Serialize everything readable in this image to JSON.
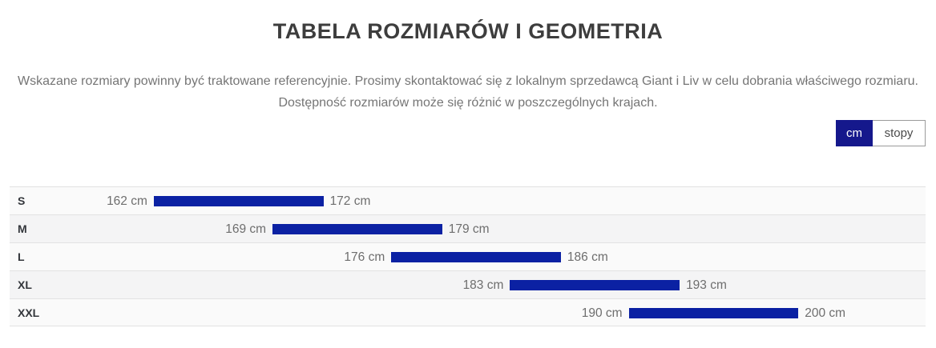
{
  "page": {
    "title": "TABELA ROZMIARÓW I GEOMETRIA",
    "description_line1": "Wskazane rozmiary powinny być traktowane referencyjnie. Prosimy skontaktować się z lokalnym sprzedawcą Giant i Liv w celu dobrania właściwego rozmiaru.",
    "description_line2": "Dostępność rozmiarów może się różnić w poszczególnych krajach."
  },
  "unit_toggle": {
    "active_option": "cm",
    "active_bg": "#15188c",
    "options": [
      {
        "label": "cm",
        "active": true
      },
      {
        "label": "stopy",
        "active": false
      }
    ]
  },
  "chart_data": {
    "type": "bar",
    "subtype": "horizontal-range-bars",
    "unit": "cm",
    "title": "",
    "xlabel": "",
    "ylabel": "",
    "grid": false,
    "legend": false,
    "axis_min": 153.5,
    "axis_max": 207.5,
    "bar_color": "#0b21a3",
    "categories": [
      "S",
      "M",
      "L",
      "XL",
      "XXL"
    ],
    "rows": [
      {
        "category": "S",
        "start": 162,
        "end": 172,
        "start_label": "162 cm",
        "end_label": "172 cm"
      },
      {
        "category": "M",
        "start": 169,
        "end": 179,
        "start_label": "169 cm",
        "end_label": "179 cm"
      },
      {
        "category": "L",
        "start": 176,
        "end": 186,
        "start_label": "176 cm",
        "end_label": "186 cm"
      },
      {
        "category": "XL",
        "start": 183,
        "end": 193,
        "start_label": "183 cm",
        "end_label": "193 cm"
      },
      {
        "category": "XXL",
        "start": 190,
        "end": 200,
        "start_label": "190 cm",
        "end_label": "200 cm"
      }
    ]
  }
}
